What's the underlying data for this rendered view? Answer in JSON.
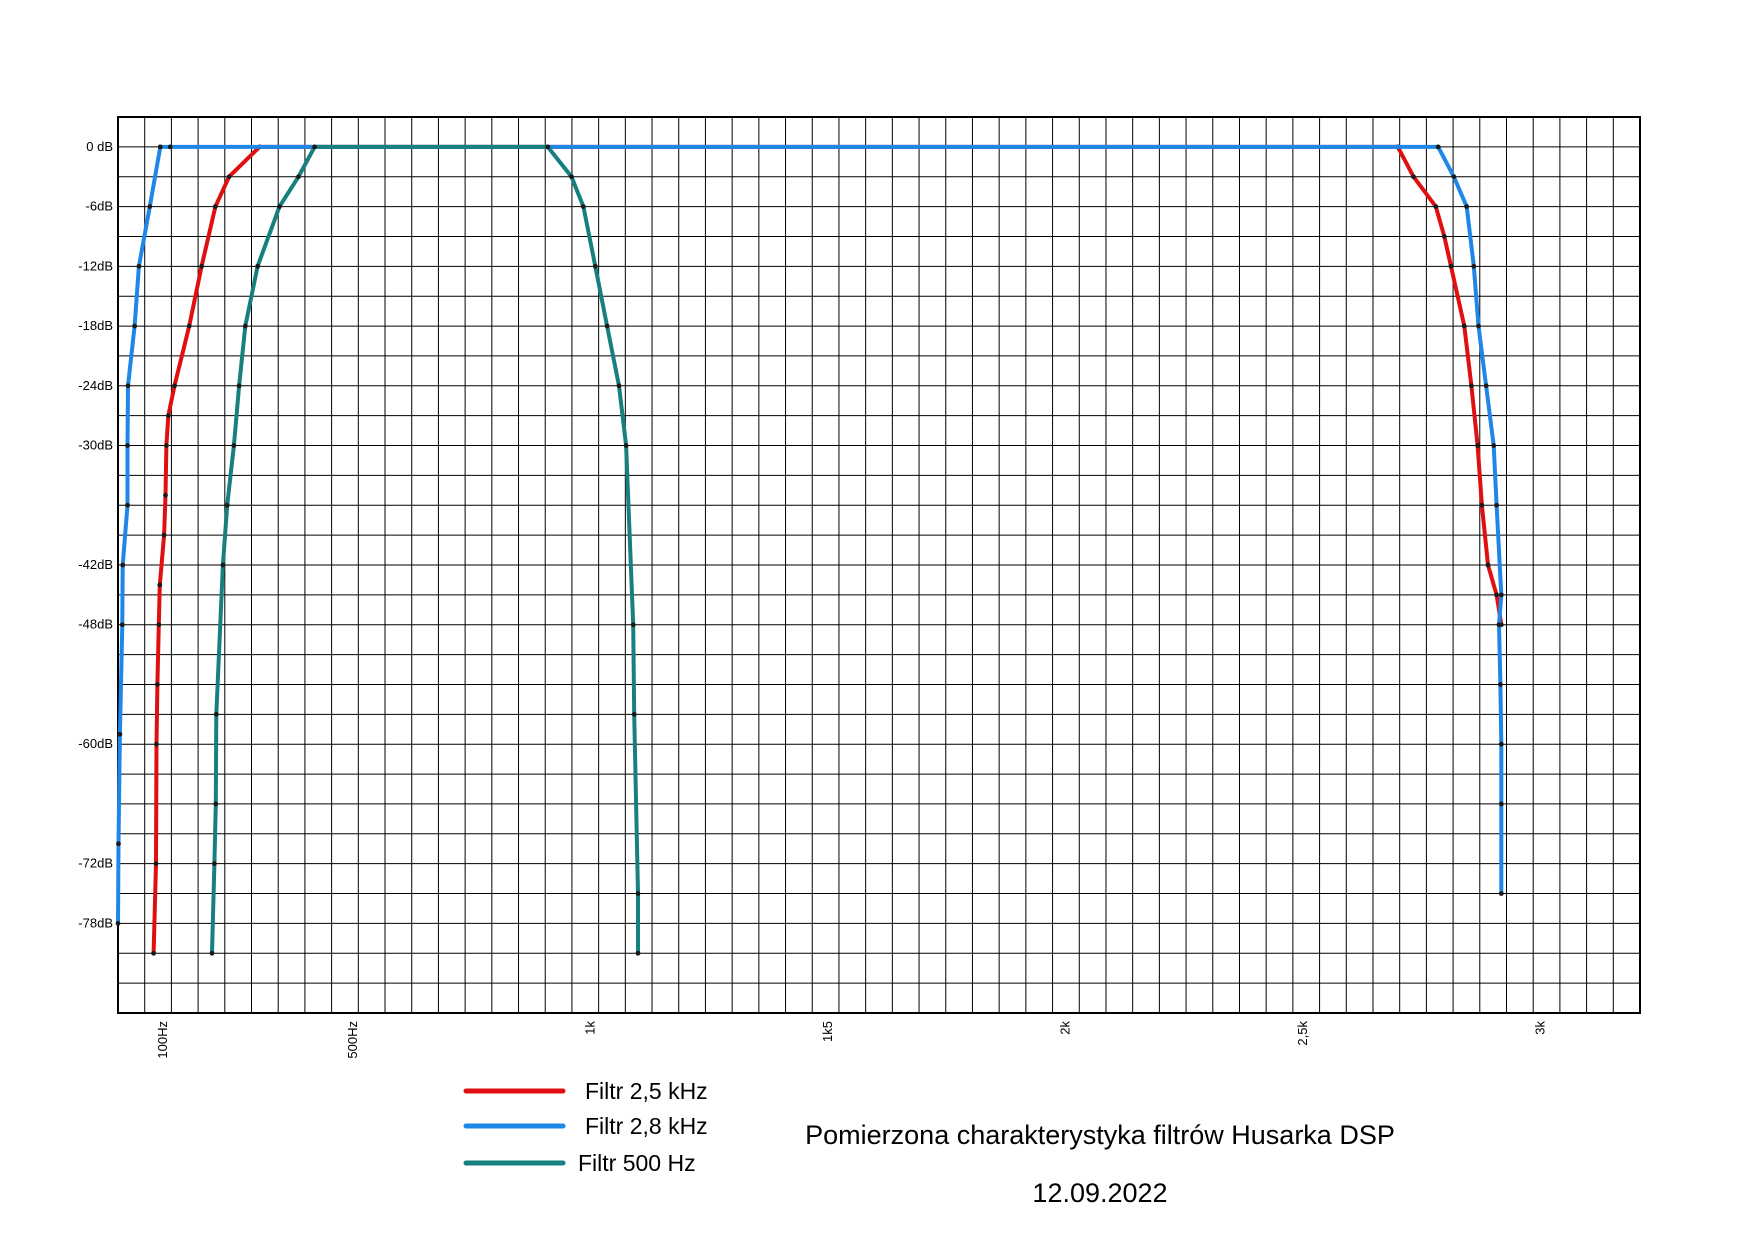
{
  "chart_data": {
    "type": "line",
    "title": "Pomierzona charakterystyka filtrów Husarka DSP",
    "subtitle": "12.09.2022",
    "xlabel": "",
    "ylabel": "",
    "grid": true,
    "legend_position": "bottom-left",
    "x_ticks": [
      {
        "label": "100Hz",
        "value": 100
      },
      {
        "label": "500Hz",
        "value": 500
      },
      {
        "label": "1k",
        "value": 1000
      },
      {
        "label": "1k5",
        "value": 1500
      },
      {
        "label": "2k",
        "value": 2000
      },
      {
        "label": "2,5k",
        "value": 2500
      },
      {
        "label": "3k",
        "value": 3000
      }
    ],
    "xlim": [
      5,
      3210
    ],
    "y_ticks": [
      {
        "label": "0 dB",
        "value": 0
      },
      {
        "label": "-6dB",
        "value": -6
      },
      {
        "label": "-12dB",
        "value": -12
      },
      {
        "label": "-18dB",
        "value": -18
      },
      {
        "label": "-24dB",
        "value": -24
      },
      {
        "label": "-30dB",
        "value": -30
      },
      {
        "label": "-42dB",
        "value": -42
      },
      {
        "label": "-48dB",
        "value": -48
      },
      {
        "label": "-60dB",
        "value": -60
      },
      {
        "label": "-72dB",
        "value": -72
      },
      {
        "label": "-78dB",
        "value": -78
      }
    ],
    "ylim": [
      -87,
      3
    ],
    "series": [
      {
        "name": "Filtr 2,5 kHz",
        "color": "#e01010",
        "points": [
          [
            80,
            -81
          ],
          [
            85,
            -72
          ],
          [
            86,
            -60
          ],
          [
            88,
            -54
          ],
          [
            91,
            -48
          ],
          [
            93,
            -44
          ],
          [
            102,
            -39
          ],
          [
            105,
            -35
          ],
          [
            107,
            -30
          ],
          [
            111,
            -27
          ],
          [
            124,
            -24
          ],
          [
            155,
            -18
          ],
          [
            181,
            -12
          ],
          [
            210,
            -6
          ],
          [
            239,
            -3
          ],
          [
            303,
            0
          ],
          [
            2700,
            0
          ],
          [
            2733,
            -3
          ],
          [
            2780,
            -6
          ],
          [
            2798,
            -9
          ],
          [
            2812,
            -12
          ],
          [
            2840,
            -18
          ],
          [
            2855,
            -24
          ],
          [
            2868,
            -30
          ],
          [
            2877,
            -36
          ],
          [
            2890,
            -42
          ],
          [
            2908,
            -45
          ],
          [
            2918,
            -48
          ]
        ]
      },
      {
        "name": "Filtr 2,8 kHz",
        "color": "#1e87e8",
        "points": [
          [
            5,
            -78
          ],
          [
            6,
            -70
          ],
          [
            9,
            -59
          ],
          [
            14,
            -48
          ],
          [
            15,
            -42
          ],
          [
            25,
            -36
          ],
          [
            25,
            -30
          ],
          [
            26,
            -24
          ],
          [
            40,
            -18
          ],
          [
            49,
            -12
          ],
          [
            72,
            -6
          ],
          [
            94,
            0
          ],
          [
            115,
            0
          ],
          [
            2785,
            0
          ],
          [
            2818,
            -3
          ],
          [
            2845,
            -6
          ],
          [
            2860,
            -12
          ],
          [
            2870,
            -18
          ],
          [
            2886,
            -24
          ],
          [
            2902,
            -30
          ],
          [
            2908,
            -36
          ],
          [
            2918,
            -45
          ],
          [
            2913,
            -48
          ],
          [
            2916,
            -54
          ],
          [
            2918,
            -60
          ],
          [
            2918,
            -66
          ],
          [
            2918,
            -75
          ]
        ]
      },
      {
        "name": "Filtr 500 Hz",
        "color": "#167f7f",
        "points": [
          [
            203,
            -81
          ],
          [
            208,
            -72
          ],
          [
            211,
            -66
          ],
          [
            212,
            -57
          ],
          [
            226,
            -42
          ],
          [
            235,
            -36
          ],
          [
            249,
            -30
          ],
          [
            260,
            -24
          ],
          [
            273,
            -18
          ],
          [
            299,
            -12
          ],
          [
            345,
            -6
          ],
          [
            385,
            -3
          ],
          [
            419,
            0
          ],
          [
            910,
            0
          ],
          [
            960,
            -3
          ],
          [
            985,
            -6
          ],
          [
            1010,
            -12
          ],
          [
            1035,
            -18
          ],
          [
            1060,
            -24
          ],
          [
            1075,
            -30
          ],
          [
            1090,
            -48
          ],
          [
            1092,
            -57
          ],
          [
            1100,
            -75
          ],
          [
            1100,
            -81
          ]
        ]
      }
    ]
  }
}
